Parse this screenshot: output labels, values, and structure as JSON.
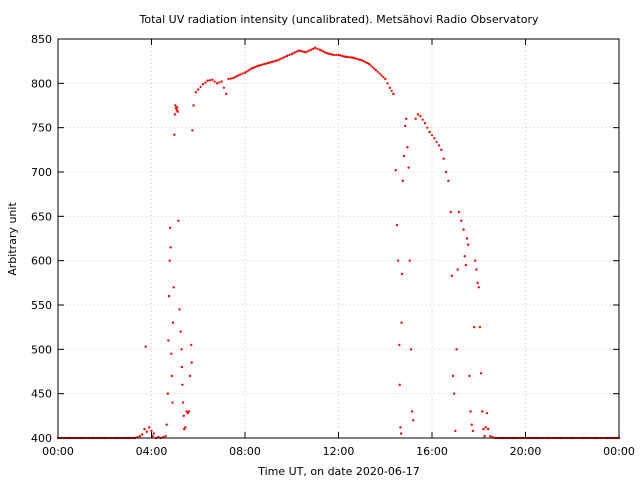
{
  "chart_data": {
    "type": "scatter",
    "title": "Total UV radiation intensity (uncalibrated). Metsähovi Radio Observatory",
    "xlabel": "Time UT, on date 2020-06-17",
    "ylabel": "Arbitrary unit",
    "xlim": [
      0,
      24
    ],
    "ylim": [
      400,
      850
    ],
    "grid": true,
    "x_ticks": [
      {
        "value": 0,
        "label": "00:00"
      },
      {
        "value": 4,
        "label": "04:00"
      },
      {
        "value": 8,
        "label": "08:00"
      },
      {
        "value": 12,
        "label": "12:00"
      },
      {
        "value": 16,
        "label": "16:00"
      },
      {
        "value": 20,
        "label": "20:00"
      },
      {
        "value": 24,
        "label": "00:00"
      }
    ],
    "y_ticks": [
      {
        "value": 400,
        "label": "400"
      },
      {
        "value": 450,
        "label": "450"
      },
      {
        "value": 500,
        "label": "500"
      },
      {
        "value": 550,
        "label": "550"
      },
      {
        "value": 600,
        "label": "600"
      },
      {
        "value": 650,
        "label": "650"
      },
      {
        "value": 700,
        "label": "700"
      },
      {
        "value": 750,
        "label": "750"
      },
      {
        "value": 800,
        "label": "800"
      },
      {
        "value": 850,
        "label": "850"
      }
    ],
    "series": [
      {
        "color": "#ff0000",
        "points": [
          [
            0.0,
            400
          ],
          [
            0.5,
            400
          ],
          [
            1.0,
            400
          ],
          [
            1.5,
            400
          ],
          [
            2.0,
            400
          ],
          [
            2.5,
            400
          ],
          [
            3.0,
            400
          ],
          [
            3.3,
            400
          ],
          [
            3.5,
            402
          ],
          [
            3.6,
            404
          ],
          [
            3.7,
            410
          ],
          [
            3.75,
            503
          ],
          [
            3.8,
            407
          ],
          [
            3.9,
            412
          ],
          [
            4.0,
            408
          ],
          [
            4.05,
            402
          ],
          [
            4.1,
            405
          ],
          [
            4.2,
            400
          ],
          [
            4.3,
            401
          ],
          [
            4.4,
            400
          ],
          [
            4.6,
            402
          ],
          [
            4.65,
            415
          ],
          [
            4.7,
            450
          ],
          [
            4.72,
            510
          ],
          [
            4.75,
            560
          ],
          [
            4.78,
            600
          ],
          [
            4.8,
            637
          ],
          [
            4.82,
            615
          ],
          [
            4.85,
            495
          ],
          [
            4.87,
            470
          ],
          [
            4.9,
            440
          ],
          [
            4.92,
            530
          ],
          [
            4.95,
            570
          ],
          [
            4.98,
            742
          ],
          [
            5.0,
            765
          ],
          [
            5.02,
            775
          ],
          [
            5.05,
            772
          ],
          [
            5.08,
            770
          ],
          [
            5.1,
            773
          ],
          [
            5.12,
            768
          ],
          [
            5.15,
            645
          ],
          [
            5.2,
            545
          ],
          [
            5.25,
            520
          ],
          [
            5.28,
            500
          ],
          [
            5.3,
            480
          ],
          [
            5.32,
            460
          ],
          [
            5.35,
            440
          ],
          [
            5.38,
            425
          ],
          [
            5.4,
            410
          ],
          [
            5.45,
            412
          ],
          [
            5.5,
            430
          ],
          [
            5.55,
            428
          ],
          [
            5.6,
            430
          ],
          [
            5.65,
            470
          ],
          [
            5.7,
            505
          ],
          [
            5.72,
            485
          ],
          [
            5.75,
            747
          ],
          [
            5.8,
            775
          ],
          [
            5.9,
            790
          ],
          [
            6.0,
            793
          ],
          [
            6.2,
            799
          ],
          [
            6.4,
            803
          ],
          [
            6.6,
            804
          ],
          [
            6.8,
            800
          ],
          [
            7.0,
            802
          ],
          [
            7.2,
            788
          ],
          [
            7.3,
            805
          ],
          [
            7.5,
            806
          ],
          [
            7.8,
            810
          ],
          [
            8.0,
            812
          ],
          [
            8.3,
            817
          ],
          [
            8.6,
            820
          ],
          [
            9.0,
            823
          ],
          [
            9.4,
            826
          ],
          [
            9.8,
            831
          ],
          [
            10.0,
            833
          ],
          [
            10.3,
            837
          ],
          [
            10.6,
            835
          ],
          [
            11.0,
            840
          ],
          [
            11.2,
            838
          ],
          [
            11.5,
            834
          ],
          [
            11.8,
            832
          ],
          [
            12.0,
            832
          ],
          [
            12.3,
            830
          ],
          [
            12.6,
            829
          ],
          [
            13.0,
            826
          ],
          [
            13.3,
            822
          ],
          [
            13.6,
            815
          ],
          [
            14.0,
            805
          ],
          [
            14.2,
            795
          ],
          [
            14.35,
            788
          ],
          [
            14.45,
            702
          ],
          [
            14.5,
            640
          ],
          [
            14.55,
            600
          ],
          [
            14.6,
            505
          ],
          [
            14.62,
            460
          ],
          [
            14.65,
            412
          ],
          [
            14.68,
            405
          ],
          [
            14.7,
            530
          ],
          [
            14.72,
            585
          ],
          [
            14.75,
            690
          ],
          [
            14.8,
            718
          ],
          [
            14.85,
            752
          ],
          [
            14.9,
            760
          ],
          [
            14.95,
            728
          ],
          [
            15.0,
            705
          ],
          [
            15.05,
            600
          ],
          [
            15.1,
            500
          ],
          [
            15.15,
            430
          ],
          [
            15.2,
            420
          ],
          [
            15.3,
            760
          ],
          [
            15.4,
            765
          ],
          [
            15.5,
            763
          ],
          [
            15.7,
            755
          ],
          [
            15.9,
            745
          ],
          [
            16.1,
            738
          ],
          [
            16.3,
            730
          ],
          [
            16.4,
            725
          ],
          [
            16.5,
            715
          ],
          [
            16.6,
            700
          ],
          [
            16.7,
            690
          ],
          [
            16.8,
            655
          ],
          [
            16.85,
            583
          ],
          [
            16.9,
            470
          ],
          [
            16.95,
            450
          ],
          [
            17.0,
            408
          ],
          [
            17.05,
            500
          ],
          [
            17.1,
            590
          ],
          [
            17.15,
            655
          ],
          [
            17.25,
            645
          ],
          [
            17.35,
            635
          ],
          [
            17.4,
            605
          ],
          [
            17.45,
            595
          ],
          [
            17.5,
            625
          ],
          [
            17.55,
            618
          ],
          [
            17.6,
            470
          ],
          [
            17.65,
            430
          ],
          [
            17.7,
            415
          ],
          [
            17.75,
            408
          ],
          [
            17.8,
            525
          ],
          [
            17.85,
            600
          ],
          [
            17.9,
            590
          ],
          [
            17.95,
            575
          ],
          [
            18.0,
            570
          ],
          [
            18.05,
            525
          ],
          [
            18.1,
            473
          ],
          [
            18.15,
            430
          ],
          [
            18.2,
            410
          ],
          [
            18.25,
            402
          ],
          [
            18.3,
            412
          ],
          [
            18.35,
            428
          ],
          [
            18.4,
            410
          ],
          [
            18.5,
            402
          ],
          [
            18.7,
            400
          ],
          [
            19.0,
            400
          ],
          [
            19.5,
            400
          ],
          [
            20.0,
            400
          ],
          [
            20.5,
            400
          ],
          [
            21.0,
            400
          ],
          [
            21.5,
            400
          ],
          [
            22.0,
            400
          ],
          [
            22.5,
            400
          ],
          [
            23.0,
            400
          ],
          [
            23.5,
            400
          ],
          [
            24.0,
            400
          ]
        ]
      }
    ]
  }
}
